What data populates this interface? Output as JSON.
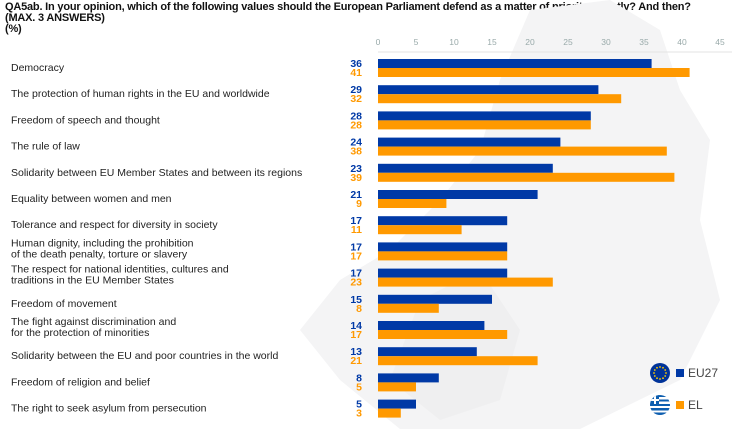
{
  "title_lines": [
    "QA5ab. In your opinion, which of the following values should the European Parliament defend as a matter of priority? Firstly? And then?",
    "(MAX. 3 ANSWERS)",
    "(%)"
  ],
  "chart_data": {
    "type": "bar",
    "orientation": "horizontal",
    "title": "QA5ab. In your opinion, which of the following values should the European Parliament defend as a matter of priority? Firstly? And then? (MAX. 3 ANSWERS) (%)",
    "categories": [
      [
        "Democracy"
      ],
      [
        "The protection of human rights in the EU and worldwide"
      ],
      [
        "Freedom of speech and thought"
      ],
      [
        "The rule of law"
      ],
      [
        "Solidarity between EU Member States and between its regions"
      ],
      [
        "Equality between women and men"
      ],
      [
        "Tolerance and respect for diversity in society"
      ],
      [
        "Human dignity, including the prohibition",
        "of the death penalty, torture or slavery"
      ],
      [
        "The respect for national identities, cultures and",
        "traditions in the EU Member States"
      ],
      [
        "Freedom of movement"
      ],
      [
        "The fight against discrimination and",
        "for the protection of minorities"
      ],
      [
        "Solidarity between the EU and poor countries in the world"
      ],
      [
        "Freedom of religion and belief"
      ],
      [
        "The right to seek asylum from persecution"
      ]
    ],
    "series": [
      {
        "name": "EU27",
        "color": "#0039a6",
        "values": [
          36,
          29,
          28,
          24,
          23,
          21,
          17,
          17,
          17,
          15,
          14,
          13,
          8,
          5
        ]
      },
      {
        "name": "EL",
        "color": "#ff9900",
        "values": [
          41,
          32,
          28,
          38,
          39,
          9,
          11,
          17,
          23,
          8,
          17,
          21,
          5,
          3
        ]
      }
    ],
    "xlim": [
      0,
      45
    ],
    "xticks": [
      0,
      5,
      10,
      15,
      20,
      25,
      30,
      35,
      40,
      45
    ],
    "grid": false,
    "legend": "bottom-right"
  },
  "legend": {
    "items": [
      {
        "label": "EU27",
        "icon": "eu-flag-icon",
        "color": "#0039a6"
      },
      {
        "label": "EL",
        "icon": "greece-flag-icon",
        "color": "#ff9900"
      }
    ]
  }
}
